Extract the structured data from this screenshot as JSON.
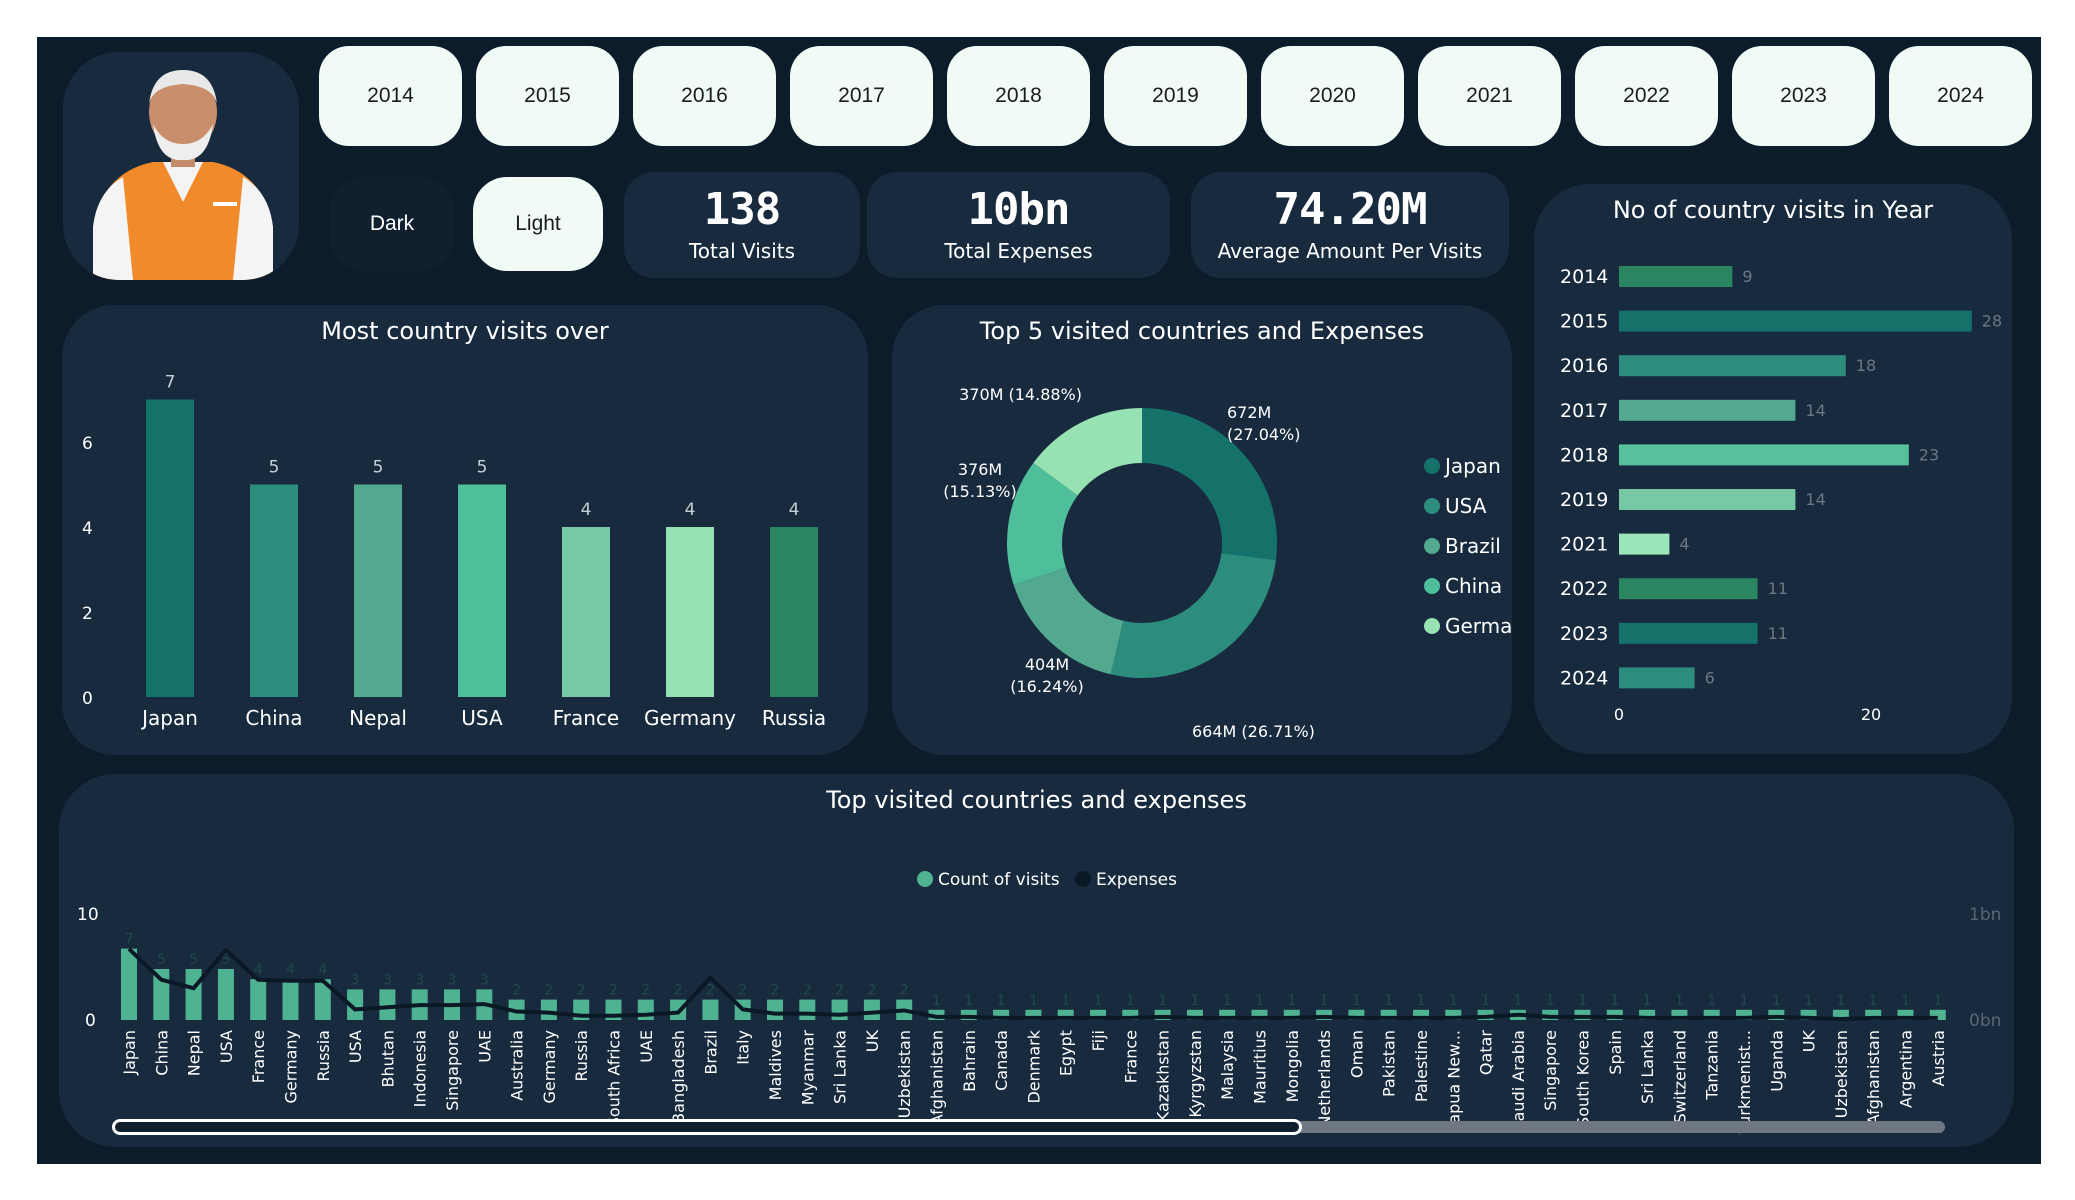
{
  "years": [
    "2014",
    "2015",
    "2016",
    "2017",
    "2018",
    "2019",
    "2020",
    "2021",
    "2022",
    "2023",
    "2024"
  ],
  "theme": {
    "dark_label": "Dark",
    "light_label": "Light"
  },
  "kpis": [
    {
      "value": "138",
      "label": "Total Visits"
    },
    {
      "value": "10bn",
      "label": "Total Expenses"
    },
    {
      "value": "74.20M",
      "label": "Average Amount Per Visits"
    }
  ],
  "colors": {
    "background": "#0c1c2a",
    "card": "#182a3e",
    "button": "#f0fbf6"
  },
  "photo": {
    "icon": "person-portrait-icon"
  },
  "chart_data": [
    {
      "type": "bar",
      "title": "Most country visits over",
      "categories": [
        "Japan",
        "China",
        "Nepal",
        "USA",
        "France",
        "Germany",
        "Russia"
      ],
      "values": [
        7,
        5,
        5,
        5,
        4,
        4,
        4
      ],
      "yticks": [
        0,
        2,
        4,
        6
      ],
      "ylim": [
        0,
        7.5
      ],
      "colors": [
        "#14726b",
        "#2c8c7d",
        "#53a98f",
        "#4fbf9b",
        "#77c8a5",
        "#97e2b2",
        "#2a8560"
      ]
    },
    {
      "type": "pie",
      "title": "Top 5 visited countries and Expenses",
      "labels": [
        "Japan",
        "USA",
        "Brazil",
        "China",
        "Germany"
      ],
      "values": [
        672,
        664,
        404,
        376,
        370
      ],
      "value_labels": [
        "672M (27.04%)",
        "664M (26.71%)",
        "404M (16.24%)",
        "376M (15.13%)",
        "370M (14.88%)"
      ],
      "colors": [
        "#14726b",
        "#2c8c7d",
        "#53a98f",
        "#4fbf9b",
        "#97e2b2"
      ],
      "legend": "right"
    },
    {
      "type": "bar",
      "title": "No of country visits in Year",
      "categories": [
        "2014",
        "2015",
        "2016",
        "2017",
        "2018",
        "2019",
        "2021",
        "2022",
        "2023",
        "2024"
      ],
      "values": [
        9,
        28,
        18,
        14,
        23,
        14,
        4,
        11,
        11,
        6
      ],
      "xticks": [
        0,
        20
      ],
      "xlim": [
        0,
        29
      ],
      "colors": [
        "#2a8560",
        "#14726b",
        "#2c8c7d",
        "#53a98f",
        "#56c19b",
        "#77c8a5",
        "#9de6b9",
        "#2a8560",
        "#14726b",
        "#2c8c7d"
      ]
    },
    {
      "type": "bar",
      "title": "Top visited countries and expenses",
      "legend_items": [
        "Count of visits",
        "Expenses"
      ],
      "categories": [
        "Japan",
        "China",
        "Nepal",
        "USA",
        "France",
        "Germany",
        "Russia",
        "USA",
        "Bhutan",
        "Indonesia",
        "Singapore",
        "UAE",
        "Australia",
        "Germany",
        "Russia",
        "South Africa",
        "UAE",
        "Bangladesh",
        "Brazil",
        "Italy",
        "Maldives",
        "Myanmar",
        "Sri Lanka",
        "UK",
        "Uzbekistan",
        "Afghanistan",
        "Bahrain",
        "Canada",
        "Denmark",
        "Egypt",
        "Fiji",
        "France",
        "Kazakhstan",
        "Kyrgyzstan",
        "Malaysia",
        "Mauritius",
        "Mongolia",
        "Netherlands",
        "Oman",
        "Pakistan",
        "Palestine",
        "Papua New...",
        "Qatar",
        "Saudi Arabia",
        "Singapore",
        "South Korea",
        "Spain",
        "Sri Lanka",
        "Switzerland",
        "Tanzania",
        "Turkmenist...",
        "Uganda",
        "UK",
        "Uzbekistan",
        "Afghanistan",
        "Argentina",
        "Austria"
      ],
      "values": [
        7,
        5,
        5,
        5,
        4,
        4,
        4,
        3,
        3,
        3,
        3,
        3,
        2,
        2,
        2,
        2,
        2,
        2,
        2,
        2,
        2,
        2,
        2,
        2,
        2,
        1,
        1,
        1,
        1,
        1,
        1,
        1,
        1,
        1,
        1,
        1,
        1,
        1,
        1,
        1,
        1,
        1,
        1,
        1,
        1,
        1,
        1,
        1,
        1,
        1,
        1,
        1,
        1,
        1,
        1,
        1,
        1
      ],
      "expenses_trend": [
        0.67,
        0.38,
        0.3,
        0.66,
        0.38,
        0.37,
        0.37,
        0.1,
        0.12,
        0.14,
        0.14,
        0.15,
        0.08,
        0.07,
        0.04,
        0.04,
        0.05,
        0.07,
        0.4,
        0.1,
        0.06,
        0.06,
        0.05,
        0.07,
        0.09,
        0.03,
        0.03,
        0.02,
        0.02,
        0.02,
        0.02,
        0.02,
        0.03,
        0.02,
        0.02,
        0.02,
        0.02,
        0.03,
        0.02,
        0.02,
        0.02,
        0.02,
        0.03,
        0.05,
        0.03,
        0.03,
        0.03,
        0.02,
        0.02,
        0.02,
        0.02,
        0.03,
        0.02,
        0.01,
        0.02,
        0.02,
        0.02
      ],
      "left_axis": {
        "ticks": [
          "0",
          "10"
        ],
        "max": 10
      },
      "right_axis": {
        "ticks": [
          "0bn",
          "1bn"
        ]
      },
      "colors": {
        "count": "#4fb392",
        "expenses": "#0b1926"
      }
    }
  ]
}
